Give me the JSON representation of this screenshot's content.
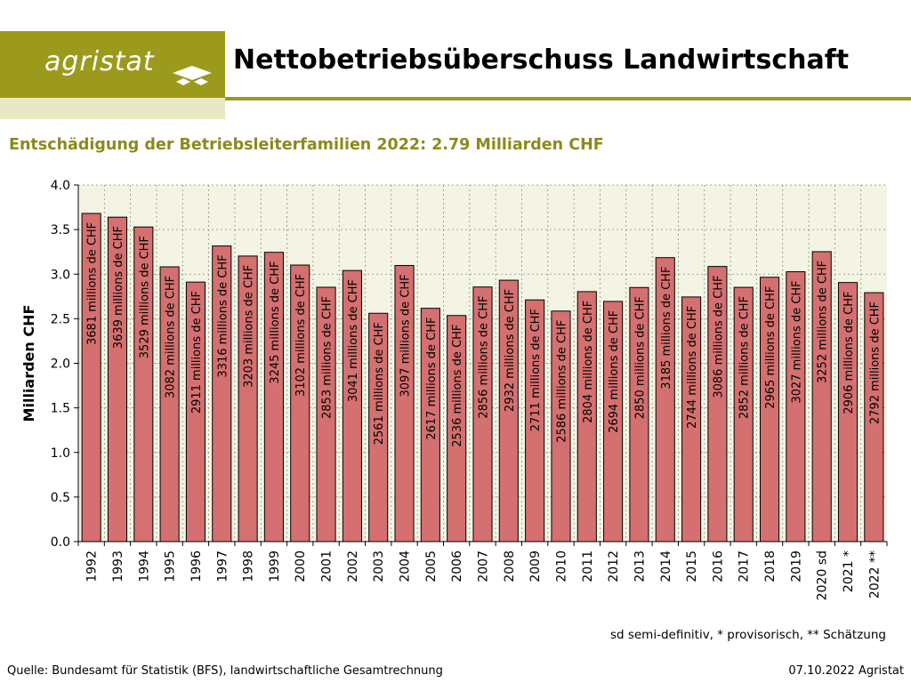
{
  "header": {
    "logo_text": "agristat",
    "title": "Nettobetriebsüberschuss Landwirtschaft"
  },
  "subtitle": "Entschädigung der Betriebsleiterfamilien 2022: 2.79 Milliarden CHF",
  "footer": {
    "note": "sd semi-definitiv, * provisorisch, ** Schätzung",
    "source": "Quelle: Bundesamt für Statistik (BFS), landwirtschaftliche Gesamtrechnung",
    "date": "07.10.2022 Agristat"
  },
  "colors": {
    "brand": "#9c9a1c",
    "plot_bg": "#f4f4e4",
    "bar_fill": "#d4706f",
    "bar_border": "#000000",
    "subtitle": "#8a8b1c"
  },
  "chart_data": {
    "type": "bar",
    "ylabel": "Milliarden CHF",
    "ylim": [
      0,
      4.0
    ],
    "yticks": [
      "0.0",
      "0.5",
      "1.0",
      "1.5",
      "2.0",
      "2.5",
      "3.0",
      "3.5",
      "4.0"
    ],
    "grid": true,
    "categories": [
      "1992",
      "1993",
      "1994",
      "1995",
      "1996",
      "1997",
      "1998",
      "1999",
      "2000",
      "2001",
      "2002",
      "2003",
      "2004",
      "2005",
      "2006",
      "2007",
      "2008",
      "2009",
      "2010",
      "2011",
      "2012",
      "2013",
      "2014",
      "2015",
      "2016",
      "2017",
      "2018",
      "2019",
      "2020 sd",
      "2021 *",
      "2022 **"
    ],
    "values": [
      3.681,
      3.639,
      3.529,
      3.082,
      2.911,
      3.316,
      3.203,
      3.245,
      3.102,
      2.853,
      3.041,
      2.561,
      3.097,
      2.617,
      2.536,
      2.856,
      2.932,
      2.711,
      2.586,
      2.804,
      2.694,
      2.85,
      3.185,
      2.744,
      3.086,
      2.852,
      2.965,
      3.027,
      3.252,
      2.906,
      2.792
    ],
    "data_labels": [
      "3681 millions de CHF",
      "3639 millions de CHF",
      "3529 millions de CHF",
      "3082 millions de CHF",
      "2911 millions de CHF",
      "3316 millions de CHF",
      "3203 millions de CHF",
      "3245 millions de CHF",
      "3102 millions de CHF",
      "2853 millions de CHF",
      "3041 millions de CHF",
      "2561 millions de CHF",
      "3097 millions de CHF",
      "2617 millions de CHF",
      "2536 millions de CHF",
      "2856 millions de CHF",
      "2932 millions de CHF",
      "2711 millions de CHF",
      "2586 millions de CHF",
      "2804 millions de CHF",
      "2694 millions de CHF",
      "2850 millions de CHF",
      "3185 millions de CHF",
      "2744 millions de CHF",
      "3086 millions de CHF",
      "2852 millions de CHF",
      "2965 millions de CHF",
      "3027 millions de CHF",
      "3252 millions de CHF",
      "2906 millions de CHF",
      "2792 millions de CHF"
    ]
  }
}
